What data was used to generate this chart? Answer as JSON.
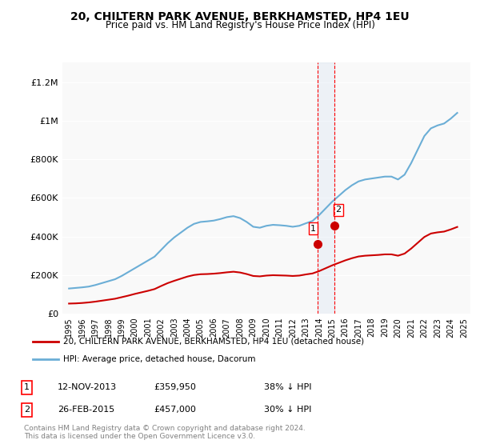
{
  "title": "20, CHILTERN PARK AVENUE, BERKHAMSTED, HP4 1EU",
  "subtitle": "Price paid vs. HM Land Registry's House Price Index (HPI)",
  "red_label": "20, CHILTERN PARK AVENUE, BERKHAMSTED, HP4 1EU (detached house)",
  "blue_label": "HPI: Average price, detached house, Dacorum",
  "footer": "Contains HM Land Registry data © Crown copyright and database right 2024.\nThis data is licensed under the Open Government Licence v3.0.",
  "sale1_date": "12-NOV-2013",
  "sale1_price": "£359,950",
  "sale1_pct": "38% ↓ HPI",
  "sale2_date": "26-FEB-2015",
  "sale2_price": "£457,000",
  "sale2_pct": "30% ↓ HPI",
  "sale1_x": 2013.87,
  "sale1_y": 359950,
  "sale2_x": 2015.16,
  "sale2_y": 457000,
  "ylim": [
    0,
    1300000
  ],
  "xlim": [
    1994.5,
    2025.5
  ],
  "background_color": "#f9f9f9",
  "hpi_years": [
    1995,
    1995.5,
    1996,
    1996.5,
    1997,
    1997.5,
    1998,
    1998.5,
    1999,
    1999.5,
    2000,
    2000.5,
    2001,
    2001.5,
    2002,
    2002.5,
    2003,
    2003.5,
    2004,
    2004.5,
    2005,
    2005.5,
    2006,
    2006.5,
    2007,
    2007.5,
    2008,
    2008.5,
    2009,
    2009.5,
    2010,
    2010.5,
    2011,
    2011.5,
    2012,
    2012.5,
    2013,
    2013.5,
    2014,
    2014.5,
    2015,
    2015.5,
    2016,
    2016.5,
    2017,
    2017.5,
    2018,
    2018.5,
    2019,
    2019.5,
    2020,
    2020.5,
    2021,
    2021.5,
    2022,
    2022.5,
    2023,
    2023.5,
    2024,
    2024.5
  ],
  "hpi_values": [
    130000,
    133000,
    136000,
    140000,
    148000,
    158000,
    168000,
    178000,
    195000,
    215000,
    235000,
    255000,
    275000,
    295000,
    330000,
    365000,
    395000,
    420000,
    445000,
    465000,
    475000,
    478000,
    482000,
    490000,
    500000,
    505000,
    495000,
    475000,
    450000,
    445000,
    455000,
    460000,
    458000,
    455000,
    450000,
    455000,
    468000,
    480000,
    510000,
    545000,
    580000,
    610000,
    640000,
    665000,
    685000,
    695000,
    700000,
    705000,
    710000,
    710000,
    695000,
    720000,
    780000,
    850000,
    920000,
    960000,
    975000,
    985000,
    1010000,
    1040000
  ],
  "red_years": [
    1995,
    1995.5,
    1996,
    1996.5,
    1997,
    1997.5,
    1998,
    1998.5,
    1999,
    1999.5,
    2000,
    2000.5,
    2001,
    2001.5,
    2002,
    2002.5,
    2003,
    2003.5,
    2004,
    2004.5,
    2005,
    2005.5,
    2006,
    2006.5,
    2007,
    2007.5,
    2008,
    2008.5,
    2009,
    2009.5,
    2010,
    2010.5,
    2011,
    2011.5,
    2012,
    2012.5,
    2013,
    2013.5,
    2014,
    2014.5,
    2015,
    2015.5,
    2016,
    2016.5,
    2017,
    2017.5,
    2018,
    2018.5,
    2019,
    2019.5,
    2020,
    2020.5,
    2021,
    2021.5,
    2022,
    2022.5,
    2023,
    2023.5,
    2024,
    2024.5
  ],
  "red_values": [
    52000,
    53000,
    55000,
    58000,
    62000,
    67000,
    72000,
    77000,
    85000,
    93000,
    102000,
    110000,
    118000,
    127000,
    143000,
    158000,
    170000,
    181000,
    192000,
    200000,
    204000,
    205000,
    207000,
    210000,
    214000,
    217000,
    213000,
    205000,
    195000,
    193000,
    197000,
    199000,
    198000,
    197000,
    195000,
    197000,
    203000,
    208000,
    220000,
    235000,
    250000,
    263000,
    276000,
    287000,
    296000,
    300000,
    302000,
    304000,
    307000,
    307000,
    300000,
    311000,
    337000,
    367000,
    397000,
    415000,
    421000,
    425000,
    436000,
    449000
  ]
}
